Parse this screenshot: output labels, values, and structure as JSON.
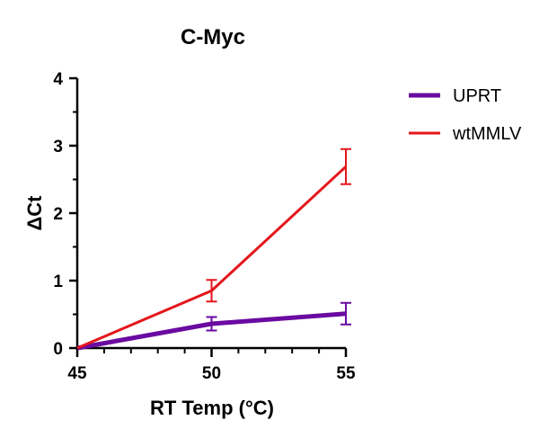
{
  "chart_data": {
    "type": "line",
    "title": "C-Myc",
    "xlabel": "RT Temp (°C)",
    "ylabel": "ΔCt",
    "x": [
      45,
      50,
      55
    ],
    "xlim": [
      45,
      55
    ],
    "ylim": [
      0,
      4
    ],
    "x_ticks": [
      45,
      50,
      55
    ],
    "y_ticks": [
      0,
      1,
      2,
      3,
      4
    ],
    "x_tick_labels": [
      "45",
      "50",
      "55"
    ],
    "y_tick_labels": [
      "0",
      "1",
      "2",
      "3",
      "4"
    ],
    "grid": false,
    "legend_position": "top-right",
    "series": [
      {
        "name": "UPRT",
        "color": "#6a0aa0",
        "values": [
          0,
          0.36,
          0.51
        ],
        "error": [
          0,
          0.1,
          0.16
        ],
        "line_weight": "thick"
      },
      {
        "name": "wtMMLV",
        "color": "#e4161b",
        "values": [
          0,
          0.85,
          2.69
        ],
        "error": [
          0,
          0.16,
          0.26
        ],
        "line_weight": "thin"
      }
    ]
  }
}
